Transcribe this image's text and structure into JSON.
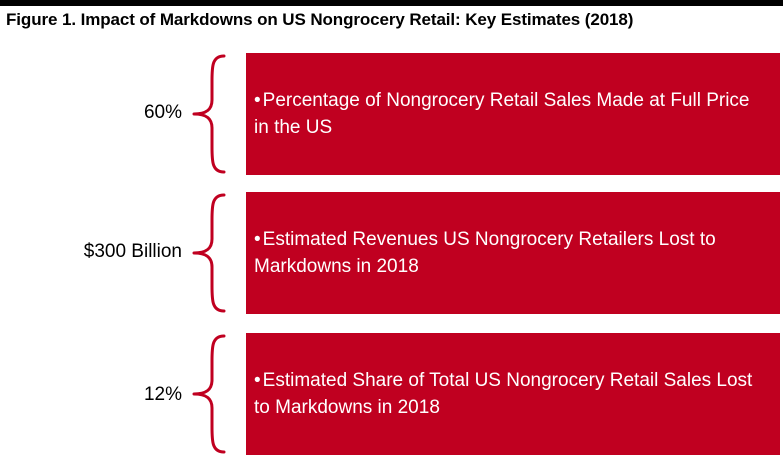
{
  "title": "Figure 1. Impact of Markdowns on US Nongrocery Retail: Key Estimates (2018)",
  "colors": {
    "box_fill": "#c00020",
    "brace": "#c00020",
    "title_rule": "#000000",
    "text_on_box": "#ffffff"
  },
  "bullet_glyph": "•",
  "estimates": [
    {
      "value": "60%",
      "description": "Percentage of Nongrocery Retail Sales Made at Full Price in the US"
    },
    {
      "value": "$300 Billion",
      "description": "Estimated Revenues US Nongrocery Retailers Lost to Markdowns in 2018"
    },
    {
      "value": "12%",
      "description": "Estimated Share of Total US Nongrocery Retail Sales Lost to Markdowns in 2018"
    }
  ]
}
